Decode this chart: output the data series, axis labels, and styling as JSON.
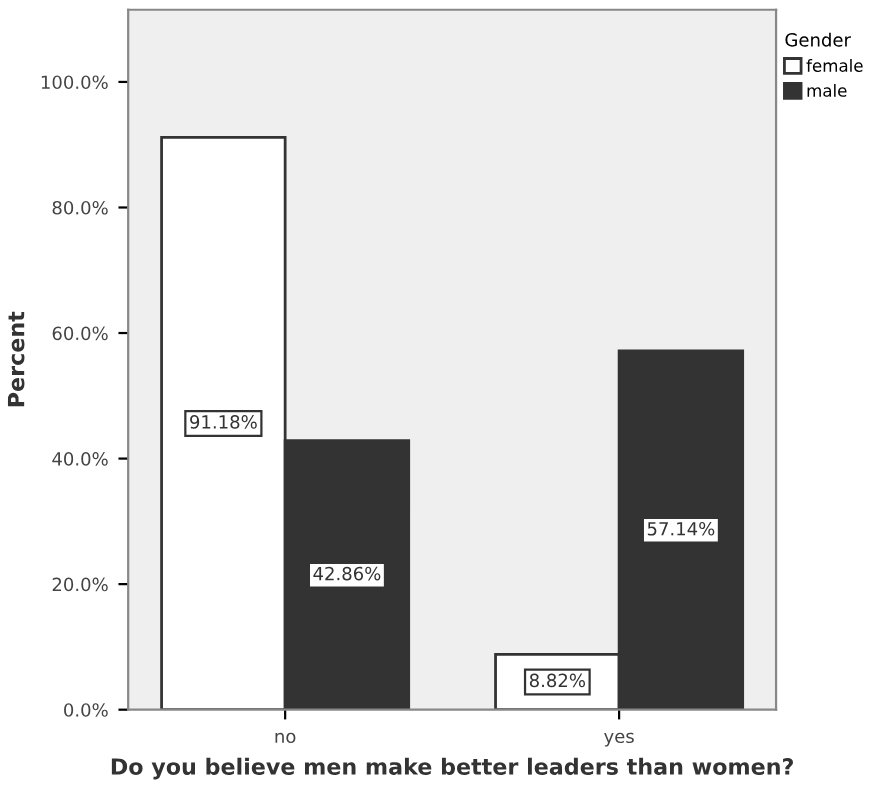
{
  "chart_data": {
    "type": "bar",
    "xlabel": "Do you believe men make better leaders than women?",
    "ylabel": "Percent",
    "legend_title": "Gender",
    "categories": [
      "no",
      "yes"
    ],
    "series": [
      {
        "name": "female",
        "color": "#ffffff",
        "values": [
          91.18,
          8.82
        ],
        "value_labels": [
          "91.18%",
          "8.82%"
        ]
      },
      {
        "name": "male",
        "color": "#333333",
        "values": [
          42.86,
          57.14
        ],
        "value_labels": [
          "42.86%",
          "57.14%"
        ]
      }
    ],
    "ylim": [
      0,
      111.5
    ],
    "yticks": [
      {
        "value": 0,
        "label": "0.0%"
      },
      {
        "value": 20,
        "label": "20.0%"
      },
      {
        "value": 40,
        "label": "40.0%"
      },
      {
        "value": 60,
        "label": "60.0%"
      },
      {
        "value": 80,
        "label": "80.0%"
      },
      {
        "value": 100,
        "label": "100.0%"
      }
    ],
    "grid": false,
    "legend": "top right"
  }
}
